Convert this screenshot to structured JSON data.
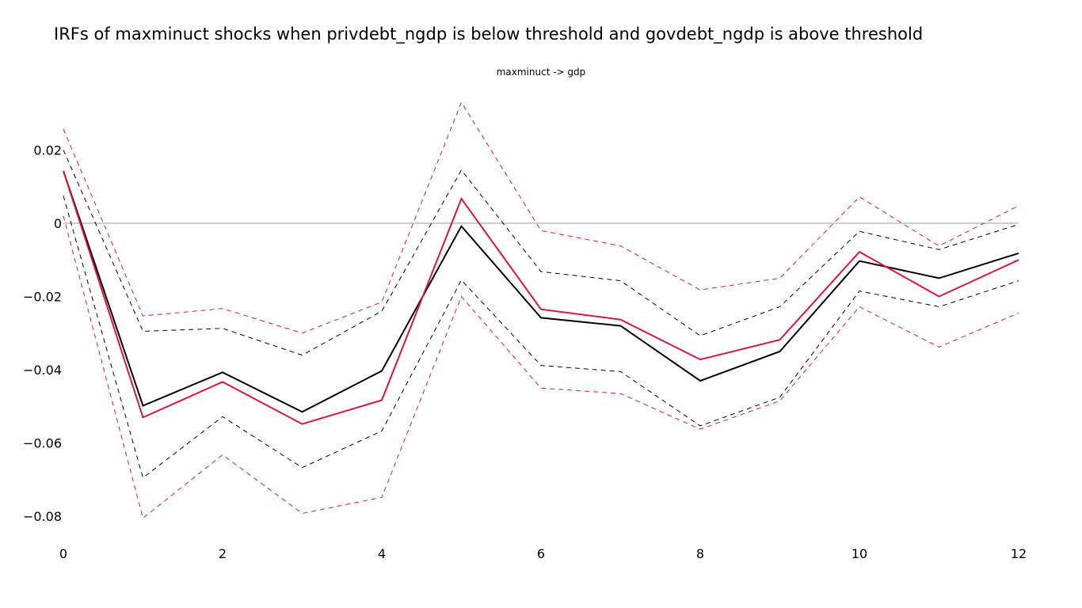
{
  "chart_data": {
    "type": "line",
    "title": "IRFs of maxminuct shocks when privdebt_ngdp is below threshold and govdebt_ngdp is above threshold",
    "subtitle": "maxminuct -> gdp",
    "xlabel": "",
    "ylabel": "",
    "xlim": [
      0,
      12
    ],
    "ylim": [
      -0.086,
      0.035
    ],
    "x": [
      0,
      1,
      2,
      3,
      4,
      5,
      6,
      7,
      8,
      9,
      10,
      11,
      12
    ],
    "xticks": [
      0,
      2,
      4,
      6,
      8,
      10,
      12
    ],
    "xtick_labels": [
      "0",
      "2",
      "4",
      "6",
      "8",
      "10",
      "12"
    ],
    "yticks": [
      0.02,
      0,
      -0.02,
      -0.04,
      -0.06,
      -0.08
    ],
    "ytick_labels": [
      "0.02",
      "0",
      "−0.02",
      "−0.04",
      "−0.06",
      "−0.08"
    ],
    "zero_line": true,
    "grid": false,
    "legend": "none",
    "series": [
      {
        "color": "#000000",
        "dash": "dash",
        "values": [
          0.02,
          -0.0295,
          -0.0287,
          -0.036,
          -0.024,
          0.0145,
          -0.0132,
          -0.0157,
          -0.0307,
          -0.0228,
          -0.0022,
          -0.0072,
          -0.0003
        ]
      },
      {
        "color": "#000000",
        "dash": "dash",
        "values": [
          0.0075,
          -0.0695,
          -0.0528,
          -0.0667,
          -0.0567,
          -0.0155,
          -0.0388,
          -0.0405,
          -0.0553,
          -0.0475,
          -0.0185,
          -0.0228,
          -0.0157
        ]
      },
      {
        "color": "#dc143c",
        "dash": "dash",
        "values": [
          0.0257,
          -0.0253,
          -0.0233,
          -0.03,
          -0.0215,
          0.033,
          -0.002,
          -0.0062,
          -0.0182,
          -0.015,
          0.0072,
          -0.0062,
          0.0048
        ]
      },
      {
        "color": "#dc143c",
        "dash": "dash",
        "values": [
          0.002,
          -0.0805,
          -0.0632,
          -0.0792,
          -0.0748,
          -0.02,
          -0.045,
          -0.0465,
          -0.0562,
          -0.0485,
          -0.0228,
          -0.0338,
          -0.0245
        ]
      },
      {
        "color": "#000000",
        "dash": "solid",
        "values": [
          0.0143,
          -0.0498,
          -0.0407,
          -0.0515,
          -0.0403,
          -0.0008,
          -0.0258,
          -0.028,
          -0.043,
          -0.035,
          -0.0103,
          -0.015,
          -0.0082
        ]
      },
      {
        "color": "#dc143c",
        "dash": "solid",
        "values": [
          0.0143,
          -0.053,
          -0.0433,
          -0.0548,
          -0.0483,
          0.0067,
          -0.0235,
          -0.0263,
          -0.0372,
          -0.0318,
          -0.0078,
          -0.02,
          -0.01
        ]
      }
    ]
  }
}
